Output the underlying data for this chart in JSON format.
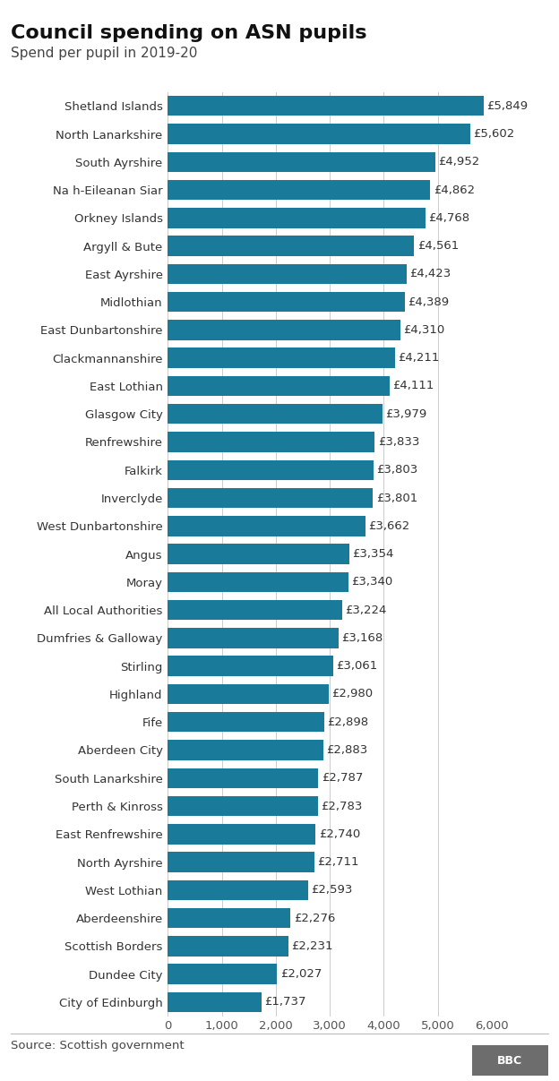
{
  "title": "Council spending on ASN pupils",
  "subtitle": "Spend per pupil in 2019-20",
  "source": "Source: Scottish government",
  "bar_color": "#1a7a9a",
  "background_color": "#ffffff",
  "categories": [
    "Shetland Islands",
    "North Lanarkshire",
    "South Ayrshire",
    "Na h-Eileanan Siar",
    "Orkney Islands",
    "Argyll & Bute",
    "East Ayrshire",
    "Midlothian",
    "East Dunbartonshire",
    "Clackmannanshire",
    "East Lothian",
    "Glasgow City",
    "Renfrewshire",
    "Falkirk",
    "Inverclyde",
    "West Dunbartonshire",
    "Angus",
    "Moray",
    "All Local Authorities",
    "Dumfries & Galloway",
    "Stirling",
    "Highland",
    "Fife",
    "Aberdeen City",
    "South Lanarkshire",
    "Perth & Kinross",
    "East Renfrewshire",
    "North Ayrshire",
    "West Lothian",
    "Aberdeenshire",
    "Scottish Borders",
    "Dundee City",
    "City of Edinburgh"
  ],
  "values": [
    5849,
    5602,
    4952,
    4862,
    4768,
    4561,
    4423,
    4389,
    4310,
    4211,
    4111,
    3979,
    3833,
    3803,
    3801,
    3662,
    3354,
    3340,
    3224,
    3168,
    3061,
    2980,
    2898,
    2883,
    2787,
    2783,
    2740,
    2711,
    2593,
    2276,
    2231,
    2027,
    1737
  ],
  "xlim": [
    0,
    6000
  ],
  "xticks": [
    0,
    1000,
    2000,
    3000,
    4000,
    5000,
    6000
  ],
  "xtick_labels": [
    "0",
    "1,000",
    "2,000",
    "3,000",
    "4,000",
    "5,000",
    "6,000"
  ],
  "title_fontsize": 16,
  "subtitle_fontsize": 11,
  "label_fontsize": 9.5,
  "tick_fontsize": 9.5,
  "source_fontsize": 9.5,
  "bar_height": 0.72
}
